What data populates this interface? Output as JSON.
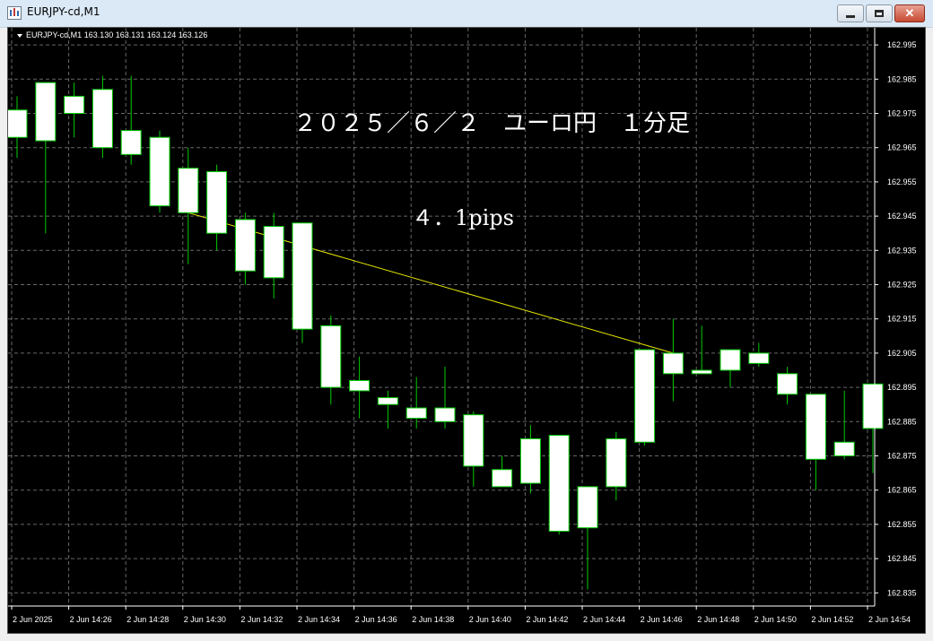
{
  "window": {
    "title": "EURJPY-cd,M1",
    "buttons": {
      "minimize": "minimize-icon",
      "maximize": "maximize-icon",
      "close": "close-icon"
    }
  },
  "chart_info": {
    "label": "EURJPY-cd,M1  163.130 163.131 163.124 163.126"
  },
  "annotations": {
    "title": "２０２５／６／２　ユーロ円　１分足",
    "pips": "４．1pips"
  },
  "colors": {
    "background": "#000000",
    "grid": "#8a8a8a",
    "candle_bull": "#ffffff",
    "candle_bear": "#ffffff",
    "candle_outline": "#00cc00",
    "trendline": "#e6e600",
    "axis_text": "#ffffff"
  },
  "chart_data": {
    "type": "candlestick",
    "y_ticks": [
      "162.995",
      "162.985",
      "162.975",
      "162.965",
      "162.955",
      "162.945",
      "162.935",
      "162.925",
      "162.915",
      "162.905",
      "162.895",
      "162.885",
      "162.875",
      "162.865",
      "162.855",
      "162.845",
      "162.835"
    ],
    "x_ticks": [
      "2 Jun 2025",
      "2 Jun 14:26",
      "2 Jun 14:28",
      "2 Jun 14:30",
      "2 Jun 14:32",
      "2 Jun 14:34",
      "2 Jun 14:36",
      "2 Jun 14:38",
      "2 Jun 14:40",
      "2 Jun 14:42",
      "2 Jun 14:44",
      "2 Jun 14:46",
      "2 Jun 14:48",
      "2 Jun 14:50",
      "2 Jun 14:52",
      "2 Jun 14:54"
    ],
    "ylim": [
      162.8315,
      163.0
    ],
    "candles": [
      {
        "o": 162.968,
        "h": 162.98,
        "l": 162.962,
        "c": 162.976
      },
      {
        "o": 162.967,
        "h": 162.984,
        "l": 162.94,
        "c": 162.984
      },
      {
        "o": 162.98,
        "h": 162.984,
        "l": 162.968,
        "c": 162.975
      },
      {
        "o": 162.982,
        "h": 162.986,
        "l": 162.962,
        "c": 162.965
      },
      {
        "o": 162.97,
        "h": 162.986,
        "l": 162.96,
        "c": 162.963
      },
      {
        "o": 162.968,
        "h": 162.97,
        "l": 162.946,
        "c": 162.948
      },
      {
        "o": 162.959,
        "h": 162.965,
        "l": 162.931,
        "c": 162.946
      },
      {
        "o": 162.958,
        "h": 162.96,
        "l": 162.935,
        "c": 162.94
      },
      {
        "o": 162.944,
        "h": 162.946,
        "l": 162.925,
        "c": 162.929
      },
      {
        "o": 162.942,
        "h": 162.946,
        "l": 162.921,
        "c": 162.927
      },
      {
        "o": 162.943,
        "h": 162.943,
        "l": 162.908,
        "c": 162.912
      },
      {
        "o": 162.913,
        "h": 162.916,
        "l": 162.89,
        "c": 162.895
      },
      {
        "o": 162.897,
        "h": 162.904,
        "l": 162.886,
        "c": 162.894
      },
      {
        "o": 162.892,
        "h": 162.894,
        "l": 162.883,
        "c": 162.89
      },
      {
        "o": 162.889,
        "h": 162.898,
        "l": 162.883,
        "c": 162.886
      },
      {
        "o": 162.885,
        "h": 162.901,
        "l": 162.883,
        "c": 162.889
      },
      {
        "o": 162.887,
        "h": 162.888,
        "l": 162.866,
        "c": 162.872
      },
      {
        "o": 162.871,
        "h": 162.875,
        "l": 162.866,
        "c": 162.866
      },
      {
        "o": 162.867,
        "h": 162.884,
        "l": 162.864,
        "c": 162.88
      },
      {
        "o": 162.881,
        "h": 162.881,
        "l": 162.852,
        "c": 162.853
      },
      {
        "o": 162.854,
        "h": 162.866,
        "l": 162.836,
        "c": 162.866
      },
      {
        "o": 162.866,
        "h": 162.882,
        "l": 162.862,
        "c": 162.88
      },
      {
        "o": 162.879,
        "h": 162.906,
        "l": 162.878,
        "c": 162.906
      },
      {
        "o": 162.905,
        "h": 162.915,
        "l": 162.891,
        "c": 162.899
      },
      {
        "o": 162.899,
        "h": 162.913,
        "l": 162.899,
        "c": 162.9
      },
      {
        "o": 162.9,
        "h": 162.906,
        "l": 162.895,
        "c": 162.906
      },
      {
        "o": 162.905,
        "h": 162.908,
        "l": 162.901,
        "c": 162.902
      },
      {
        "o": 162.899,
        "h": 162.901,
        "l": 162.89,
        "c": 162.893
      },
      {
        "o": 162.893,
        "h": 162.893,
        "l": 162.865,
        "c": 162.874
      },
      {
        "o": 162.875,
        "h": 162.894,
        "l": 162.874,
        "c": 162.879
      },
      {
        "o": 162.883,
        "h": 162.895,
        "l": 162.87,
        "c": 162.896
      }
    ],
    "trendline": {
      "from_candle": 6,
      "from_value": 162.946,
      "to_candle": 23,
      "to_value": 162.905
    }
  }
}
